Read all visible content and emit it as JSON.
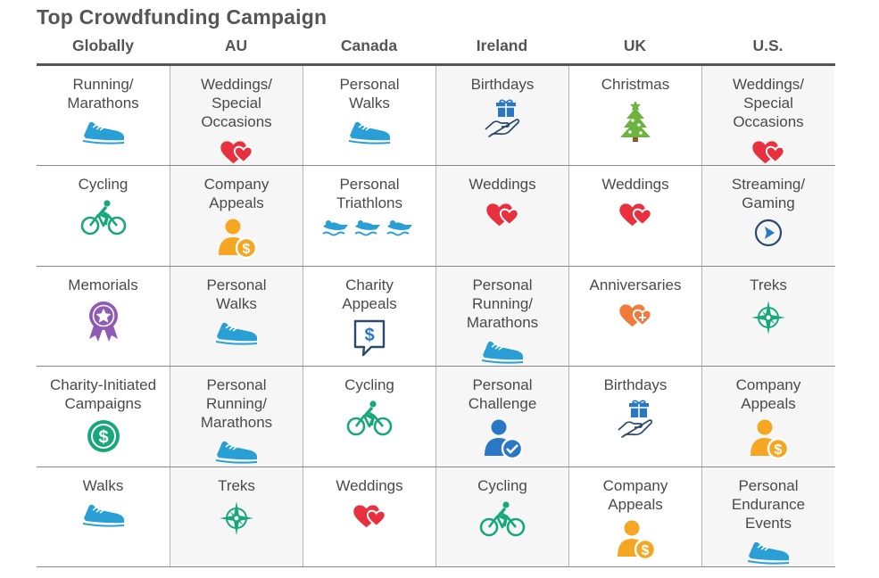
{
  "title": "Top Crowdfunding Campaign",
  "columns": [
    "Globally",
    "AU",
    "Canada",
    "Ireland",
    "UK",
    "U.S."
  ],
  "rows": [
    [
      {
        "label": "Running/\nMarathons",
        "icon": "shoe"
      },
      {
        "label": "Weddings/\nSpecial\nOccasions",
        "icon": "hearts"
      },
      {
        "label": "Personal\nWalks",
        "icon": "shoe"
      },
      {
        "label": "Birthdays",
        "icon": "gift-hand"
      },
      {
        "label": "Christmas",
        "icon": "tree"
      },
      {
        "label": "Weddings/\nSpecial\nOccasions",
        "icon": "hearts"
      }
    ],
    [
      {
        "label": "Cycling",
        "icon": "bike"
      },
      {
        "label": "Company\nAppeals",
        "icon": "person-dollar"
      },
      {
        "label": "Personal\nTriathlons",
        "icon": "triathlon"
      },
      {
        "label": "Weddings",
        "icon": "hearts"
      },
      {
        "label": "Weddings",
        "icon": "hearts"
      },
      {
        "label": "Streaming/\nGaming",
        "icon": "play"
      }
    ],
    [
      {
        "label": "Memorials",
        "icon": "ribbon"
      },
      {
        "label": "Personal\nWalks",
        "icon": "shoe"
      },
      {
        "label": "Charity\nAppeals",
        "icon": "speech-dollar"
      },
      {
        "label": "Personal\nRunning/\nMarathons",
        "icon": "shoe"
      },
      {
        "label": "Anniversaries",
        "icon": "hearts-plus"
      },
      {
        "label": "Treks",
        "icon": "compass"
      }
    ],
    [
      {
        "label": "Charity-Initiated\nCampaigns",
        "icon": "coin"
      },
      {
        "label": "Personal\nRunning/\nMarathons",
        "icon": "shoe"
      },
      {
        "label": "Cycling",
        "icon": "bike"
      },
      {
        "label": "Personal\nChallenge",
        "icon": "person-check"
      },
      {
        "label": "Birthdays",
        "icon": "gift-hand"
      },
      {
        "label": "Company\nAppeals",
        "icon": "person-dollar"
      }
    ],
    [
      {
        "label": "Walks",
        "icon": "shoe"
      },
      {
        "label": "Treks",
        "icon": "compass"
      },
      {
        "label": "Weddings",
        "icon": "hearts"
      },
      {
        "label": "Cycling",
        "icon": "bike"
      },
      {
        "label": "Company\nAppeals",
        "icon": "person-dollar"
      },
      {
        "label": "Personal\nEndurance\nEvents",
        "icon": "shoe"
      }
    ]
  ],
  "colors": {
    "shoe": "#2a9fd6",
    "heart": "#e8303f",
    "green": "#18a77c",
    "gift": "#2a78c5",
    "tree": "#6cb33f",
    "person": "#f5a623",
    "purple": "#8e5bb5",
    "orange": "#f07b3c",
    "dark": "#2b4a6e"
  }
}
